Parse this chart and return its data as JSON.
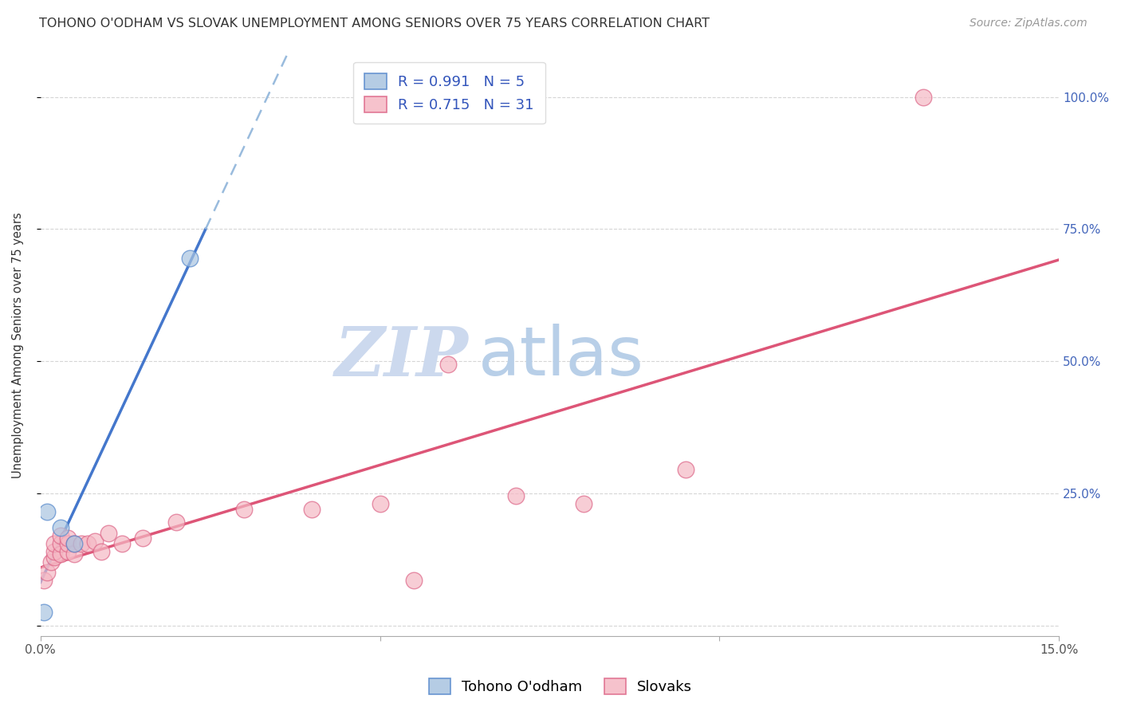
{
  "title": "TOHONO O'ODHAM VS SLOVAK UNEMPLOYMENT AMONG SENIORS OVER 75 YEARS CORRELATION CHART",
  "source": "Source: ZipAtlas.com",
  "ylabel": "Unemployment Among Seniors over 75 years",
  "xlim": [
    0.0,
    0.15
  ],
  "ylim": [
    -0.02,
    1.08
  ],
  "plot_ylim": [
    0.0,
    1.08
  ],
  "grid_color": "#cccccc",
  "background_color": "#ffffff",
  "watermark_zip": "ZIP",
  "watermark_atlas": "atlas",
  "watermark_color_zip": "#ccd9ee",
  "watermark_color_atlas": "#b8cfe8",
  "blue_series_label": "Tohono O'odham",
  "blue_R": "0.991",
  "blue_N": "5",
  "blue_color": "#a8c4e0",
  "blue_edge_color": "#5588cc",
  "blue_trendline_color": "#4477cc",
  "blue_trendline_dashed_color": "#99bbdd",
  "pink_series_label": "Slovaks",
  "pink_R": "0.715",
  "pink_N": "31",
  "pink_color": "#f5b8c4",
  "pink_edge_color": "#dd6688",
  "pink_trendline_color": "#dd5577",
  "legend_R_N_color": "#3355bb",
  "blue_x": [
    0.001,
    0.003,
    0.005,
    0.022,
    0.0005
  ],
  "blue_y": [
    0.215,
    0.185,
    0.155,
    0.695,
    0.025
  ],
  "pink_x": [
    0.0005,
    0.001,
    0.0015,
    0.002,
    0.002,
    0.002,
    0.003,
    0.003,
    0.003,
    0.004,
    0.004,
    0.004,
    0.005,
    0.005,
    0.006,
    0.007,
    0.008,
    0.009,
    0.01,
    0.012,
    0.015,
    0.02,
    0.03,
    0.04,
    0.05,
    0.055,
    0.06,
    0.07,
    0.08,
    0.095,
    0.13
  ],
  "pink_y": [
    0.085,
    0.1,
    0.12,
    0.13,
    0.14,
    0.155,
    0.135,
    0.155,
    0.17,
    0.14,
    0.155,
    0.165,
    0.135,
    0.155,
    0.155,
    0.155,
    0.16,
    0.14,
    0.175,
    0.155,
    0.165,
    0.195,
    0.22,
    0.22,
    0.23,
    0.085,
    0.495,
    0.245,
    0.23,
    0.295,
    1.0
  ],
  "title_fontsize": 11.5,
  "axis_label_fontsize": 10.5,
  "tick_fontsize": 11,
  "legend_fontsize": 13,
  "source_fontsize": 10
}
